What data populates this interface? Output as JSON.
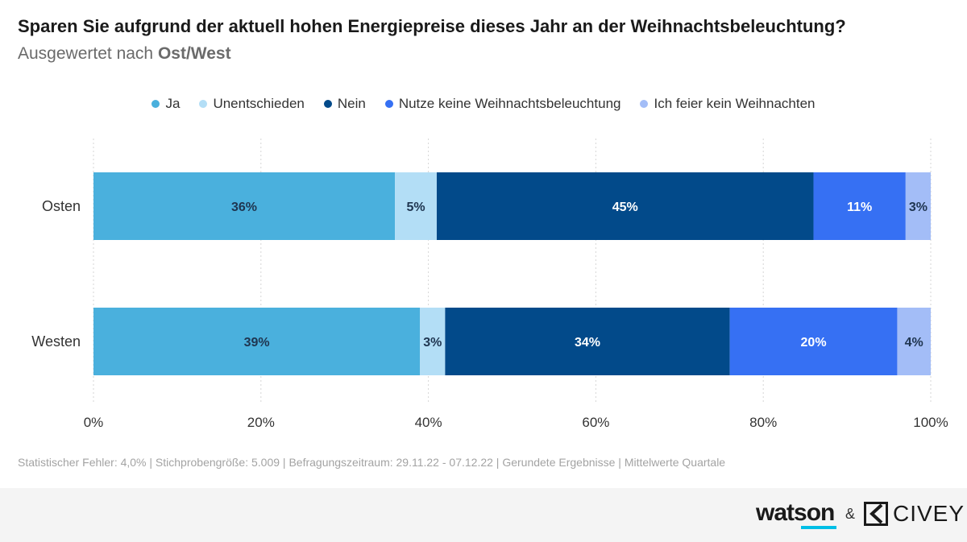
{
  "header": {
    "title": "Sparen Sie aufgrund der aktuell hohen Energiepreise dieses Jahr an der Weihnachtsbeleuchtung?",
    "subtitle_prefix": "Ausgewertet nach ",
    "subtitle_bold": "Ost/West"
  },
  "chart_data": {
    "type": "bar",
    "orientation": "horizontal",
    "stacked": true,
    "categories": [
      "Osten",
      "Westen"
    ],
    "series": [
      {
        "name": "Ja",
        "color": "#4ab0dd",
        "values": [
          36,
          39
        ]
      },
      {
        "name": "Unentschieden",
        "color": "#b3def6",
        "values": [
          5,
          3
        ]
      },
      {
        "name": "Nein",
        "color": "#024a8a",
        "values": [
          45,
          34
        ]
      },
      {
        "name": "Nutze keine Weihnachtsbeleuchtung",
        "color": "#3670f3",
        "values": [
          11,
          20
        ]
      },
      {
        "name": "Ich feier kein Weihnachten",
        "color": "#a3bdf7",
        "values": [
          3,
          4
        ]
      }
    ],
    "xlim": [
      0,
      100
    ],
    "xticks": [
      0,
      20,
      40,
      60,
      80,
      100
    ],
    "xtick_labels": [
      "0%",
      "20%",
      "40%",
      "60%",
      "80%",
      "100%"
    ],
    "value_suffix": "%",
    "grid": true,
    "legend_position": "top-center"
  },
  "footer": {
    "note": "Statistischer Fehler: 4,0% | Stichprobengröße: 5.009 | Befragungszeitraum: 29.11.22 - 07.12.22 | Gerundete Ergebnisse | Mittelwerte Quartale",
    "brand_left": "watson",
    "brand_amp": "&",
    "brand_right": "CIVEY"
  }
}
